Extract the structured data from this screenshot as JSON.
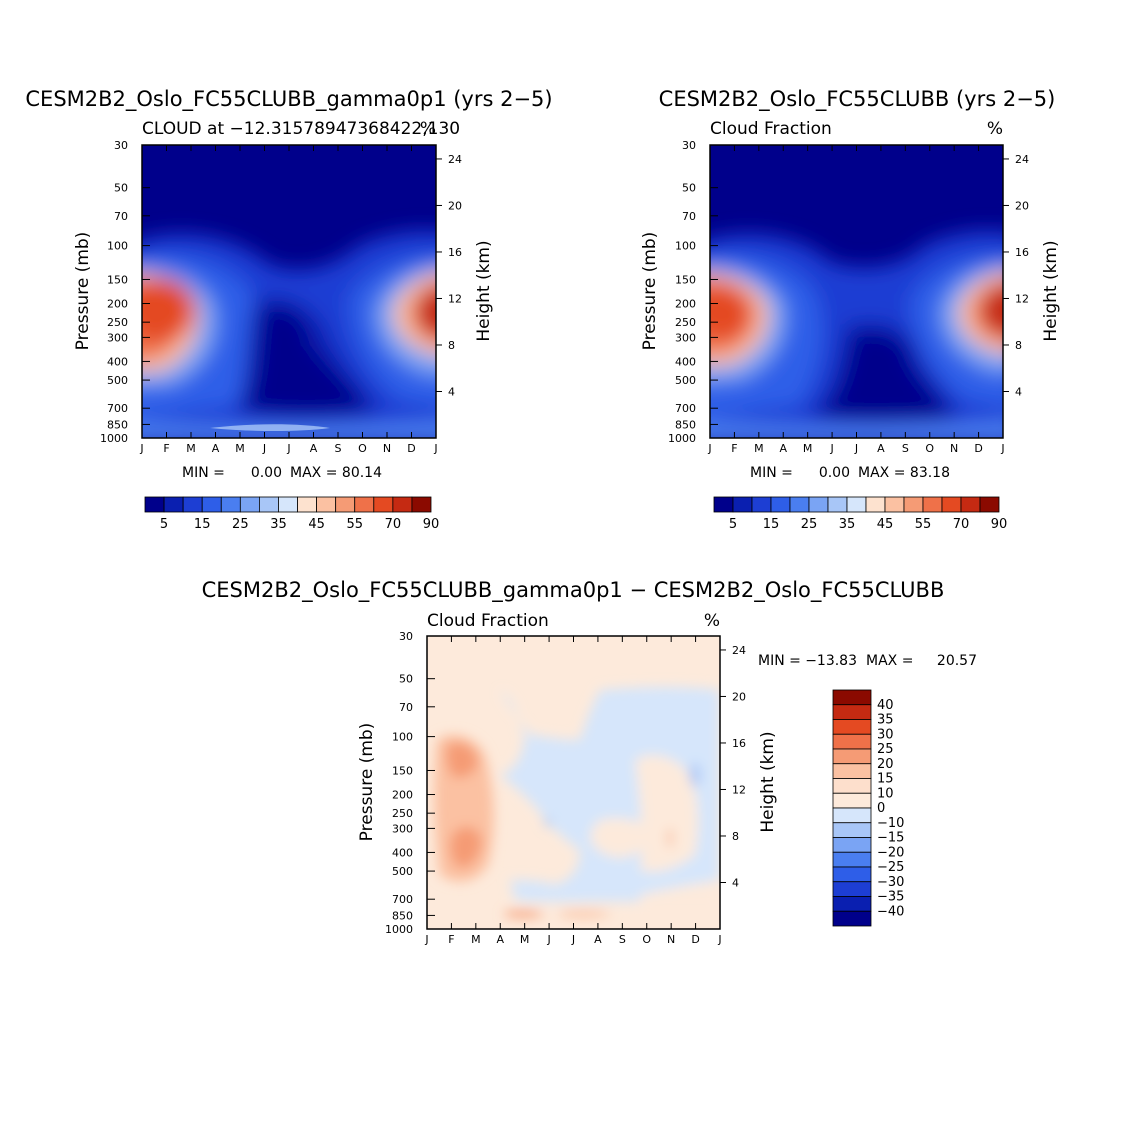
{
  "chart_data": [
    {
      "type": "contour",
      "title": "CESM2B2_Oslo_FC55CLUBB_gamma0p1 (yrs 2−5)",
      "left_subtitle": "CLOUD at −12.31578947368422,130",
      "right_subtitle": "%",
      "ylabel": "Pressure (mb)",
      "ylabel2": "Height (km)",
      "x_ticks": [
        "J",
        "F",
        "M",
        "A",
        "M",
        "J",
        "J",
        "A",
        "S",
        "O",
        "N",
        "D",
        "J"
      ],
      "y_ticks": [
        "30",
        "50",
        "70",
        "100",
        "150",
        "200",
        "250",
        "300",
        "400",
        "500",
        "700",
        "850",
        "1000"
      ],
      "y2_ticks": [
        "24",
        "20",
        "16",
        "12",
        "8",
        "4"
      ],
      "min_label": "MIN =",
      "min_value": "0.00",
      "max_label": "MAX =",
      "max_value": "80.14",
      "colorbar_labels": [
        "5",
        "15",
        "25",
        "35",
        "45",
        "55",
        "70",
        "90"
      ]
    },
    {
      "type": "contour",
      "title": "CESM2B2_Oslo_FC55CLUBB (yrs 2−5)",
      "left_subtitle": "Cloud Fraction",
      "right_subtitle": "%",
      "ylabel": "Pressure (mb)",
      "ylabel2": "Height (km)",
      "x_ticks": [
        "J",
        "F",
        "M",
        "A",
        "M",
        "J",
        "J",
        "A",
        "S",
        "O",
        "N",
        "D",
        "J"
      ],
      "y_ticks": [
        "30",
        "50",
        "70",
        "100",
        "150",
        "200",
        "250",
        "300",
        "400",
        "500",
        "700",
        "850",
        "1000"
      ],
      "y2_ticks": [
        "24",
        "20",
        "16",
        "12",
        "8",
        "4"
      ],
      "min_label": "MIN =",
      "min_value": "0.00",
      "max_label": "MAX =",
      "max_value": "83.18",
      "colorbar_labels": [
        "5",
        "15",
        "25",
        "35",
        "45",
        "55",
        "70",
        "90"
      ]
    },
    {
      "type": "contour",
      "title": "CESM2B2_Oslo_FC55CLUBB_gamma0p1 − CESM2B2_Oslo_FC55CLUBB",
      "left_subtitle": "Cloud Fraction",
      "right_subtitle": "%",
      "ylabel": "Pressure (mb)",
      "ylabel2": "Height (km)",
      "x_ticks": [
        "J",
        "F",
        "M",
        "A",
        "M",
        "J",
        "J",
        "A",
        "S",
        "O",
        "N",
        "D",
        "J"
      ],
      "y_ticks": [
        "30",
        "50",
        "70",
        "100",
        "150",
        "200",
        "250",
        "300",
        "400",
        "500",
        "700",
        "850",
        "1000"
      ],
      "y2_ticks": [
        "24",
        "20",
        "16",
        "12",
        "8",
        "4"
      ],
      "min_label": "MIN =",
      "min_value": "−13.83",
      "max_label": "MAX =",
      "max_value": "20.57",
      "colorbar_labels": [
        "40",
        "35",
        "30",
        "25",
        "20",
        "15",
        "10",
        "0",
        "−10",
        "−15",
        "−20",
        "−25",
        "−30",
        "−35",
        "−40"
      ]
    }
  ],
  "palettes": {
    "absolute": [
      "#00008b",
      "#0a1fb0",
      "#1d3ed3",
      "#2e5ee8",
      "#4a7ef0",
      "#7aa4f4",
      "#a8c6f7",
      "#d6e6fb",
      "#fde2cf",
      "#fbc1a2",
      "#f59b75",
      "#ef7149",
      "#e44a22",
      "#c52a12",
      "#8b0a00"
    ],
    "difference": [
      "#8b0a00",
      "#c52a12",
      "#e44a22",
      "#ef7149",
      "#f59b75",
      "#fbc1a2",
      "#fddfcc",
      "#fdeadb",
      "#d6e6fb",
      "#a8c6f7",
      "#7aa4f4",
      "#4a7ef0",
      "#2e5ee8",
      "#1d3ed3",
      "#0a1fb0",
      "#00008b"
    ]
  }
}
